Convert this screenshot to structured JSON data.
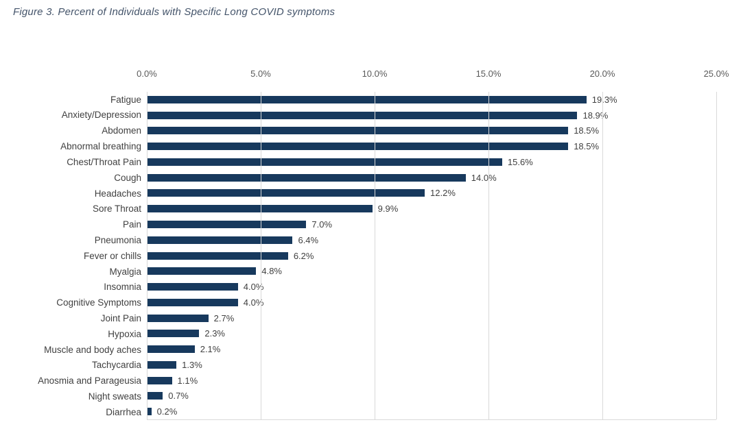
{
  "title": {
    "text": "Figure 3. Percent of Individuals with Specific Long COVID symptoms",
    "color": "#44546A"
  },
  "chart_data": {
    "type": "bar",
    "orientation": "horizontal",
    "title": "Figure 3. Percent of Individuals with Specific Long COVID symptoms",
    "categories": [
      "Fatigue",
      "Anxiety/Depression",
      "Abdomen",
      "Abnormal breathing",
      "Chest/Throat Pain",
      "Cough",
      "Headaches",
      "Sore Throat",
      "Pain",
      "Pneumonia",
      "Fever or chills",
      "Myalgia",
      "Insomnia",
      "Cognitive Symptoms",
      "Joint Pain",
      "Hypoxia",
      "Muscle and body aches",
      "Tachycardia",
      "Anosmia and Parageusia",
      "Night sweats",
      "Diarrhea"
    ],
    "values": [
      19.3,
      18.9,
      18.5,
      18.5,
      15.6,
      14.0,
      12.2,
      9.9,
      7.0,
      6.4,
      6.2,
      4.8,
      4.0,
      4.0,
      2.7,
      2.3,
      2.1,
      1.3,
      1.1,
      0.7,
      0.2
    ],
    "data_labels": [
      "19.3%",
      "18.9%",
      "18.5%",
      "18.5%",
      "15.6%",
      "14.0%",
      "12.2%",
      "9.9%",
      "7.0%",
      "6.4%",
      "6.2%",
      "4.8%",
      "4.0%",
      "4.0%",
      "2.7%",
      "2.3%",
      "2.1%",
      "1.3%",
      "1.1%",
      "0.7%",
      "0.2%"
    ],
    "xlabel": "",
    "ylabel": "",
    "xlim": [
      0,
      25
    ],
    "x_ticks": [
      {
        "value": 0,
        "label": "0.0%"
      },
      {
        "value": 5,
        "label": "5.0%"
      },
      {
        "value": 10,
        "label": "10.0%"
      },
      {
        "value": 15,
        "label": "15.0%"
      },
      {
        "value": 20,
        "label": "20.0%"
      },
      {
        "value": 25,
        "label": "25.0%"
      }
    ],
    "x_axis_position": "top",
    "grid": "vertical",
    "legend": "none",
    "colors": {
      "bar": "#17395D",
      "gridline": "#D9D9D9",
      "tick_label": "#595959",
      "data_label": "#404040",
      "category_label": "#404040",
      "background": "#FFFFFF"
    }
  }
}
